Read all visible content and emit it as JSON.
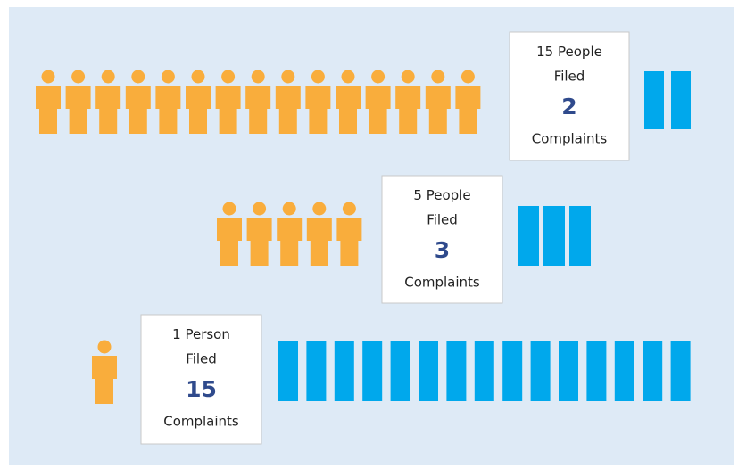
{
  "rows": [
    {
      "people": 15,
      "people_label": "People",
      "filed": "Filed",
      "complaints": 2,
      "complaints_label": "Complaints"
    },
    {
      "people": 5,
      "people_label": "People",
      "filed": "Filed",
      "complaints": 3,
      "complaints_label": "Complaints"
    },
    {
      "people": 1,
      "people_label": "Person",
      "filed": "Filed",
      "complaints": 15,
      "complaints_label": "Complaints"
    }
  ]
}
